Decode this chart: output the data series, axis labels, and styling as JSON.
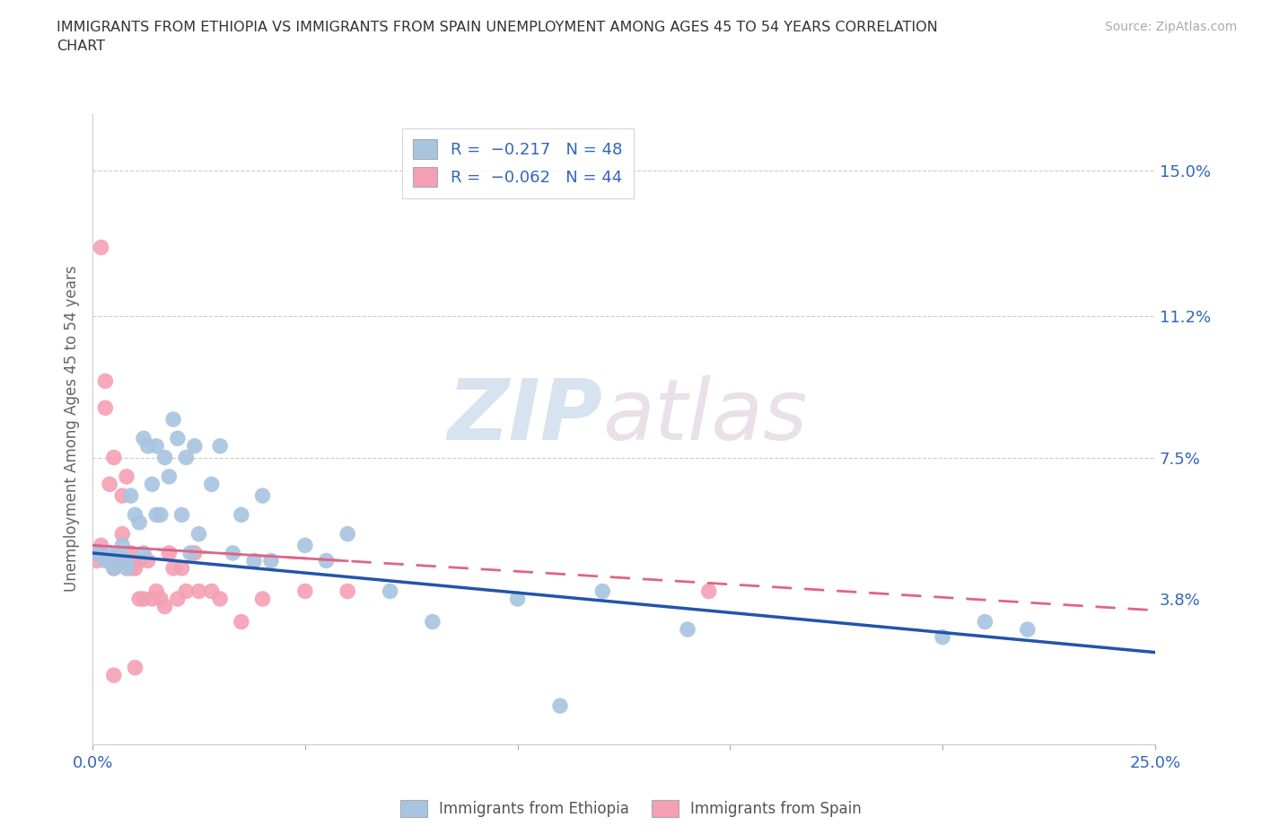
{
  "title": "IMMIGRANTS FROM ETHIOPIA VS IMMIGRANTS FROM SPAIN UNEMPLOYMENT AMONG AGES 45 TO 54 YEARS CORRELATION\nCHART",
  "ylabel": "Unemployment Among Ages 45 to 54 years",
  "source": "Source: ZipAtlas.com",
  "watermark_zip": "ZIP",
  "watermark_atlas": "atlas",
  "xlim": [
    0.0,
    0.25
  ],
  "ylim": [
    0.0,
    0.165
  ],
  "blue_color": "#a8c4e0",
  "pink_color": "#f4a0b4",
  "blue_line_color": "#2255aa",
  "pink_line_color": "#dd6688",
  "eth_line_x0": 0.0,
  "eth_line_y0": 0.05,
  "eth_line_x1": 0.25,
  "eth_line_y1": 0.024,
  "spa_line_x0": 0.0,
  "spa_line_y0": 0.052,
  "spa_line_x1": 0.25,
  "spa_line_y1": 0.035,
  "ethiopia_pts": [
    [
      0.001,
      0.05
    ],
    [
      0.002,
      0.05
    ],
    [
      0.003,
      0.048
    ],
    [
      0.004,
      0.05
    ],
    [
      0.005,
      0.048
    ],
    [
      0.005,
      0.046
    ],
    [
      0.006,
      0.05
    ],
    [
      0.007,
      0.052
    ],
    [
      0.008,
      0.048
    ],
    [
      0.008,
      0.046
    ],
    [
      0.009,
      0.065
    ],
    [
      0.01,
      0.06
    ],
    [
      0.011,
      0.058
    ],
    [
      0.012,
      0.08
    ],
    [
      0.012,
      0.05
    ],
    [
      0.013,
      0.078
    ],
    [
      0.014,
      0.068
    ],
    [
      0.015,
      0.06
    ],
    [
      0.015,
      0.078
    ],
    [
      0.016,
      0.06
    ],
    [
      0.017,
      0.075
    ],
    [
      0.018,
      0.07
    ],
    [
      0.019,
      0.085
    ],
    [
      0.02,
      0.08
    ],
    [
      0.021,
      0.06
    ],
    [
      0.022,
      0.075
    ],
    [
      0.023,
      0.05
    ],
    [
      0.024,
      0.078
    ],
    [
      0.025,
      0.055
    ],
    [
      0.028,
      0.068
    ],
    [
      0.03,
      0.078
    ],
    [
      0.033,
      0.05
    ],
    [
      0.035,
      0.06
    ],
    [
      0.038,
      0.048
    ],
    [
      0.04,
      0.065
    ],
    [
      0.042,
      0.048
    ],
    [
      0.05,
      0.052
    ],
    [
      0.055,
      0.048
    ],
    [
      0.06,
      0.055
    ],
    [
      0.07,
      0.04
    ],
    [
      0.08,
      0.032
    ],
    [
      0.1,
      0.038
    ],
    [
      0.12,
      0.04
    ],
    [
      0.14,
      0.03
    ],
    [
      0.2,
      0.028
    ],
    [
      0.21,
      0.032
    ],
    [
      0.22,
      0.03
    ],
    [
      0.11,
      0.01
    ]
  ],
  "spain_pts": [
    [
      0.001,
      0.05
    ],
    [
      0.001,
      0.048
    ],
    [
      0.002,
      0.052
    ],
    [
      0.002,
      0.13
    ],
    [
      0.003,
      0.095
    ],
    [
      0.003,
      0.088
    ],
    [
      0.004,
      0.068
    ],
    [
      0.004,
      0.048
    ],
    [
      0.005,
      0.075
    ],
    [
      0.005,
      0.046
    ],
    [
      0.006,
      0.048
    ],
    [
      0.006,
      0.048
    ],
    [
      0.007,
      0.065
    ],
    [
      0.007,
      0.055
    ],
    [
      0.008,
      0.07
    ],
    [
      0.008,
      0.048
    ],
    [
      0.009,
      0.05
    ],
    [
      0.009,
      0.046
    ],
    [
      0.01,
      0.048
    ],
    [
      0.01,
      0.046
    ],
    [
      0.011,
      0.048
    ],
    [
      0.011,
      0.038
    ],
    [
      0.012,
      0.038
    ],
    [
      0.013,
      0.048
    ],
    [
      0.014,
      0.038
    ],
    [
      0.015,
      0.04
    ],
    [
      0.016,
      0.038
    ],
    [
      0.017,
      0.036
    ],
    [
      0.018,
      0.05
    ],
    [
      0.019,
      0.046
    ],
    [
      0.02,
      0.038
    ],
    [
      0.021,
      0.046
    ],
    [
      0.022,
      0.04
    ],
    [
      0.024,
      0.05
    ],
    [
      0.025,
      0.04
    ],
    [
      0.028,
      0.04
    ],
    [
      0.03,
      0.038
    ],
    [
      0.035,
      0.032
    ],
    [
      0.04,
      0.038
    ],
    [
      0.05,
      0.04
    ],
    [
      0.06,
      0.04
    ],
    [
      0.005,
      0.018
    ],
    [
      0.01,
      0.02
    ],
    [
      0.145,
      0.04
    ]
  ]
}
